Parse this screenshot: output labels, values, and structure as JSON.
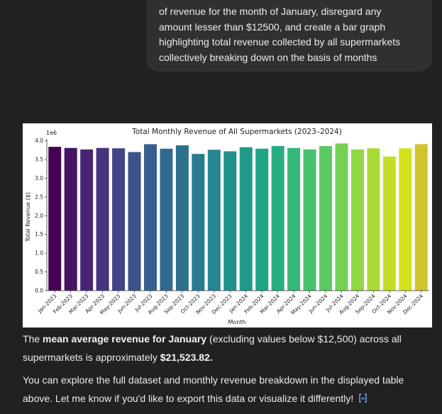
{
  "user_message": {
    "lines": [
      "of revenue for the month of January, disregard any",
      "amount lesser than $12500, and create a bar graph",
      "highlighting total revenue collected by all supermarkets",
      "collectively breaking down on the basis of months"
    ]
  },
  "assistant": {
    "p1_before": "The ",
    "p1_bold1": "mean average revenue for January",
    "p1_mid": " (excluding values below $12,500) across all supermarkets is approximately ",
    "p1_bold2": "$21,523.82.",
    "p2": "You can explore the full dataset and monthly revenue breakdown in the displayed table above. Let me know if you'd like to export this data or visualize it differently!",
    "source_icon": "code-bracket-icon"
  },
  "chart_data": {
    "type": "bar",
    "title": "Total Monthly Revenue of All Supermarkets (2023–2024)",
    "xlabel": "Month",
    "ylabel": "Total Revenue ($)",
    "y_multiplier": "1e6",
    "ylim": [
      0,
      4.05
    ],
    "yticks": [
      "0.0",
      "0.5",
      "1.0",
      "1.5",
      "2.0",
      "2.5",
      "3.0",
      "3.5",
      "4.0"
    ],
    "categories": [
      "Jan-2023",
      "Feb-2023",
      "Mar-2023",
      "Apr-2023",
      "May-2023",
      "Jun-2023",
      "Jul-2023",
      "Aug-2023",
      "Sep-2023",
      "Oct-2023",
      "Nov-2023",
      "Dec-2023",
      "Jan-2024",
      "Feb-2024",
      "Mar-2024",
      "Apr-2024",
      "May-2024",
      "Jun-2024",
      "Jul-2024",
      "Aug-2024",
      "Sep-2024",
      "Oct-2024",
      "Nov-2024",
      "Dec-2024"
    ],
    "values": [
      3.84,
      3.81,
      3.77,
      3.81,
      3.8,
      3.7,
      3.91,
      3.79,
      3.88,
      3.65,
      3.76,
      3.72,
      3.83,
      3.79,
      3.86,
      3.81,
      3.77,
      3.86,
      3.93,
      3.77,
      3.8,
      3.58,
      3.8,
      3.91
    ],
    "colors": [
      "#440154",
      "#471365",
      "#482475",
      "#463480",
      "#414487",
      "#3b528b",
      "#355f8d",
      "#306a8e",
      "#2c728e",
      "#287c8e",
      "#24868e",
      "#21918c",
      "#1f9a8a",
      "#20a486",
      "#27ad81",
      "#35b779",
      "#48c16e",
      "#5ec962",
      "#75d054",
      "#8fd744",
      "#a8db34",
      "#c2df23",
      "#d2e21b",
      "#d0c42c"
    ]
  }
}
